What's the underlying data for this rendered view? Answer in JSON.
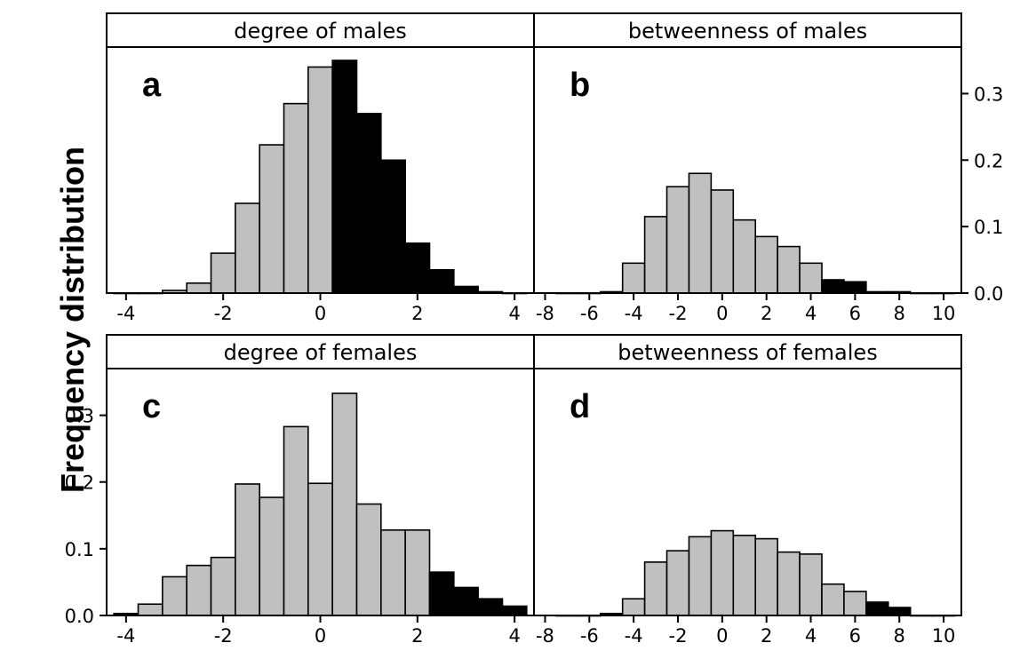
{
  "figure": {
    "ylabel": "Frequency distribution"
  },
  "chart_data": [
    {
      "type": "bar",
      "panel": "a",
      "strip_title": "degree of males",
      "xlim": [
        -4.4,
        4.4
      ],
      "ylim": [
        0,
        0.37
      ],
      "xticks": [
        -4,
        -2,
        0,
        2,
        4
      ],
      "yticks": [],
      "bin_width": 0.5,
      "bins": [
        {
          "start": -4.25,
          "value": 0.0,
          "highlight": false
        },
        {
          "start": -3.75,
          "value": 0.0,
          "highlight": false
        },
        {
          "start": -3.25,
          "value": 0.004,
          "highlight": false
        },
        {
          "start": -2.75,
          "value": 0.015,
          "highlight": false
        },
        {
          "start": -2.25,
          "value": 0.06,
          "highlight": false
        },
        {
          "start": -1.75,
          "value": 0.135,
          "highlight": false
        },
        {
          "start": -1.25,
          "value": 0.223,
          "highlight": false
        },
        {
          "start": -0.75,
          "value": 0.285,
          "highlight": false
        },
        {
          "start": -0.25,
          "value": 0.34,
          "highlight": false
        },
        {
          "start": 0.25,
          "value": 0.35,
          "highlight": true
        },
        {
          "start": 0.75,
          "value": 0.27,
          "highlight": true
        },
        {
          "start": 1.25,
          "value": 0.2,
          "highlight": true
        },
        {
          "start": 1.75,
          "value": 0.075,
          "highlight": true
        },
        {
          "start": 2.25,
          "value": 0.035,
          "highlight": true
        },
        {
          "start": 2.75,
          "value": 0.01,
          "highlight": true
        },
        {
          "start": 3.25,
          "value": 0.002,
          "highlight": true
        },
        {
          "start": 3.75,
          "value": 0.0,
          "highlight": true
        }
      ]
    },
    {
      "type": "bar",
      "panel": "b",
      "strip_title": "betweenness of males",
      "xlim": [
        -8.5,
        10.8
      ],
      "ylim": [
        0,
        0.37
      ],
      "xticks": [
        -8,
        -6,
        -4,
        -2,
        0,
        2,
        4,
        6,
        8,
        10
      ],
      "yticks": [
        0.0,
        0.1,
        0.2,
        0.3
      ],
      "ytick_labels": [
        "0.0",
        "0.1",
        "0.2",
        "0.3"
      ],
      "bin_width": 1,
      "bins": [
        {
          "start": -7.5,
          "value": 0.0,
          "highlight": false
        },
        {
          "start": -6.5,
          "value": 0.0,
          "highlight": false
        },
        {
          "start": -5.5,
          "value": 0.002,
          "highlight": true
        },
        {
          "start": -4.5,
          "value": 0.045,
          "highlight": false
        },
        {
          "start": -3.5,
          "value": 0.115,
          "highlight": false
        },
        {
          "start": -2.5,
          "value": 0.16,
          "highlight": false
        },
        {
          "start": -1.5,
          "value": 0.18,
          "highlight": false
        },
        {
          "start": -0.5,
          "value": 0.155,
          "highlight": false
        },
        {
          "start": 0.5,
          "value": 0.11,
          "highlight": false
        },
        {
          "start": 1.5,
          "value": 0.085,
          "highlight": false
        },
        {
          "start": 2.5,
          "value": 0.07,
          "highlight": false
        },
        {
          "start": 3.5,
          "value": 0.045,
          "highlight": false
        },
        {
          "start": 4.5,
          "value": 0.02,
          "highlight": true
        },
        {
          "start": 5.5,
          "value": 0.017,
          "highlight": true
        },
        {
          "start": 6.5,
          "value": 0.002,
          "highlight": true
        },
        {
          "start": 7.5,
          "value": 0.002,
          "highlight": true
        },
        {
          "start": 8.5,
          "value": 0.0,
          "highlight": true
        },
        {
          "start": 9.5,
          "value": 0.0,
          "highlight": true
        }
      ]
    },
    {
      "type": "bar",
      "panel": "c",
      "strip_title": "degree of females",
      "xlim": [
        -4.4,
        4.4
      ],
      "ylim": [
        0,
        0.37
      ],
      "xticks": [
        -4,
        -2,
        0,
        2,
        4
      ],
      "yticks": [
        0.0,
        0.1,
        0.2,
        0.3
      ],
      "ytick_labels": [
        "0.0",
        "0.1",
        "0.2",
        "0.3"
      ],
      "bin_width": 0.5,
      "bins": [
        {
          "start": -4.25,
          "value": 0.003,
          "highlight": true
        },
        {
          "start": -3.75,
          "value": 0.017,
          "highlight": false
        },
        {
          "start": -3.25,
          "value": 0.058,
          "highlight": false
        },
        {
          "start": -2.75,
          "value": 0.075,
          "highlight": false
        },
        {
          "start": -2.25,
          "value": 0.087,
          "highlight": false
        },
        {
          "start": -1.75,
          "value": 0.197,
          "highlight": false
        },
        {
          "start": -1.25,
          "value": 0.177,
          "highlight": false
        },
        {
          "start": -0.75,
          "value": 0.283,
          "highlight": false
        },
        {
          "start": -0.25,
          "value": 0.198,
          "highlight": false
        },
        {
          "start": 0.25,
          "value": 0.333,
          "highlight": false
        },
        {
          "start": 0.75,
          "value": 0.167,
          "highlight": false
        },
        {
          "start": 1.25,
          "value": 0.128,
          "highlight": false
        },
        {
          "start": 1.75,
          "value": 0.128,
          "highlight": false
        },
        {
          "start": 2.25,
          "value": 0.065,
          "highlight": true
        },
        {
          "start": 2.75,
          "value": 0.042,
          "highlight": true
        },
        {
          "start": 3.25,
          "value": 0.025,
          "highlight": true
        },
        {
          "start": 3.75,
          "value": 0.014,
          "highlight": true
        }
      ]
    },
    {
      "type": "bar",
      "panel": "d",
      "strip_title": "betweenness of females",
      "xlim": [
        -8.5,
        10.8
      ],
      "ylim": [
        0,
        0.37
      ],
      "xticks": [
        -8,
        -6,
        -4,
        -2,
        0,
        2,
        4,
        6,
        8,
        10
      ],
      "yticks": [],
      "bin_width": 1,
      "bins": [
        {
          "start": -7.5,
          "value": 0.0,
          "highlight": false
        },
        {
          "start": -6.5,
          "value": 0.0,
          "highlight": false
        },
        {
          "start": -5.5,
          "value": 0.003,
          "highlight": true
        },
        {
          "start": -4.5,
          "value": 0.025,
          "highlight": false
        },
        {
          "start": -3.5,
          "value": 0.08,
          "highlight": false
        },
        {
          "start": -2.5,
          "value": 0.097,
          "highlight": false
        },
        {
          "start": -1.5,
          "value": 0.118,
          "highlight": false
        },
        {
          "start": -0.5,
          "value": 0.127,
          "highlight": false
        },
        {
          "start": 0.5,
          "value": 0.12,
          "highlight": false
        },
        {
          "start": 1.5,
          "value": 0.115,
          "highlight": false
        },
        {
          "start": 2.5,
          "value": 0.095,
          "highlight": false
        },
        {
          "start": 3.5,
          "value": 0.092,
          "highlight": false
        },
        {
          "start": 4.5,
          "value": 0.047,
          "highlight": false
        },
        {
          "start": 5.5,
          "value": 0.036,
          "highlight": false
        },
        {
          "start": 6.5,
          "value": 0.02,
          "highlight": true
        },
        {
          "start": 7.5,
          "value": 0.012,
          "highlight": true
        },
        {
          "start": 8.5,
          "value": 0.0,
          "highlight": true
        },
        {
          "start": 9.5,
          "value": 0.0,
          "highlight": true
        }
      ]
    }
  ],
  "colors": {
    "bar_fill": "#c0c0c0",
    "bar_highlight": "#000000",
    "stroke": "#000000",
    "background": "#ffffff"
  }
}
